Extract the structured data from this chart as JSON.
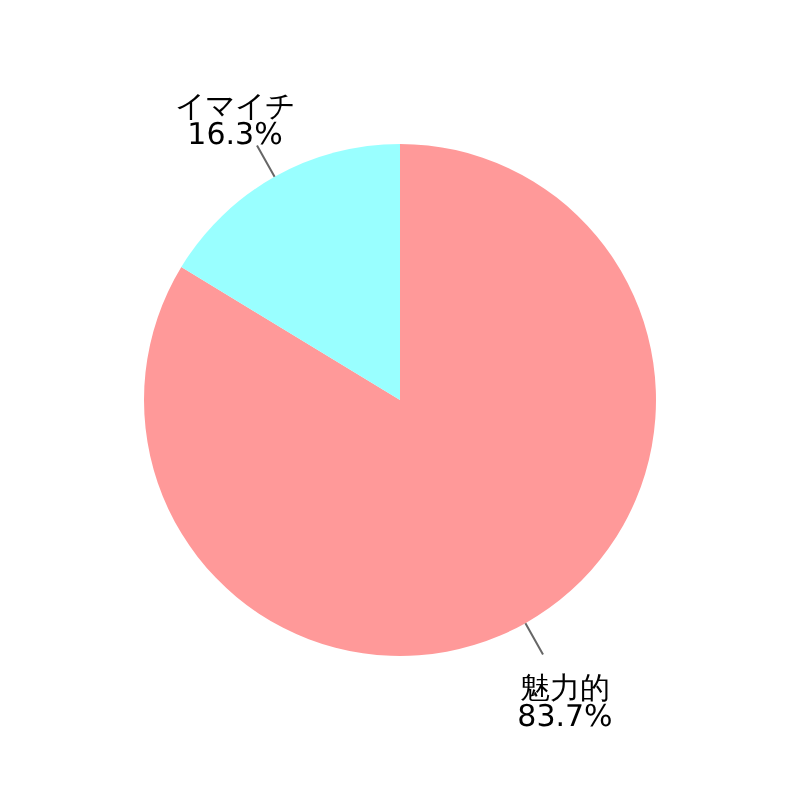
{
  "chart_data": {
    "type": "pie",
    "categories": [
      "魅力的",
      "イマイチ"
    ],
    "values": [
      83.7,
      16.3
    ],
    "colors": [
      "#ff9999",
      "#99ffff"
    ],
    "value_labels": [
      "83.7%",
      "16.3%"
    ]
  }
}
